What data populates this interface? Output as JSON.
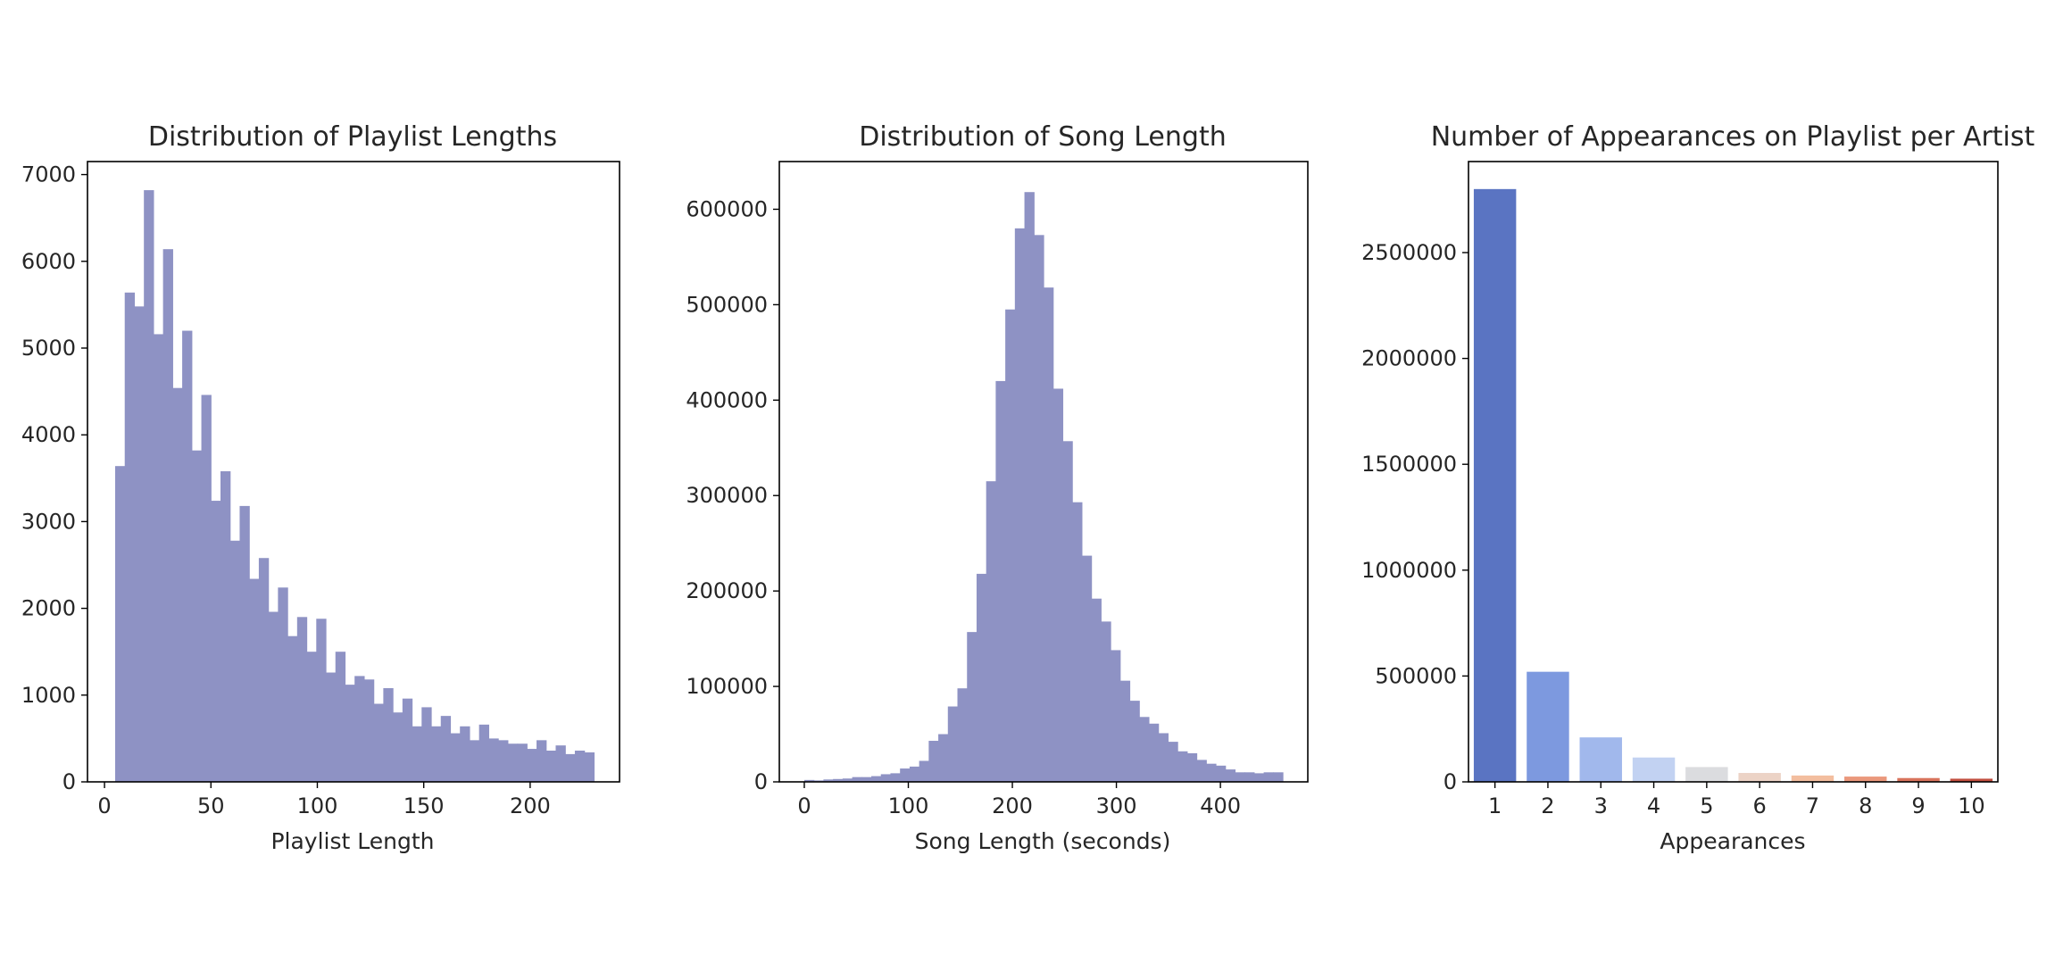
{
  "figure": {
    "background": "#ffffff"
  },
  "chart_data": [
    {
      "type": "bar",
      "subtype": "histogram",
      "title": "Distribution of Playlist Lengths",
      "xlabel": "Playlist Length",
      "ylabel": "",
      "xlim": [
        -8,
        242
      ],
      "ylim": [
        0,
        7150
      ],
      "xticks": [
        "0",
        "50",
        "100",
        "150",
        "200"
      ],
      "xtick_values": [
        0,
        50,
        100,
        150,
        200
      ],
      "yticks": [
        "0",
        "1000",
        "2000",
        "3000",
        "4000",
        "5000",
        "6000",
        "7000"
      ],
      "ytick_values": [
        0,
        1000,
        2000,
        3000,
        4000,
        5000,
        6000,
        7000
      ],
      "bin_start": 5,
      "bin_width": 4.5,
      "values": [
        3640,
        5640,
        5480,
        6820,
        5160,
        6140,
        4540,
        5200,
        3820,
        4460,
        3240,
        3580,
        2780,
        3180,
        2340,
        2580,
        1960,
        2240,
        1680,
        1900,
        1500,
        1880,
        1260,
        1500,
        1120,
        1220,
        1180,
        900,
        1080,
        800,
        960,
        640,
        860,
        640,
        760,
        560,
        640,
        480,
        660,
        500,
        480,
        440,
        440,
        380,
        480,
        360,
        420,
        320,
        360,
        340
      ],
      "color": "#8e92c4",
      "grid": false
    },
    {
      "type": "bar",
      "subtype": "histogram",
      "title": "Distribution of Song Length",
      "xlabel": "Song Length (seconds)",
      "ylabel": "",
      "xlim": [
        -24,
        484
      ],
      "ylim": [
        0,
        650000
      ],
      "xticks": [
        "0",
        "100",
        "200",
        "300",
        "400"
      ],
      "xtick_values": [
        0,
        100,
        200,
        300,
        400
      ],
      "yticks": [
        "0",
        "100000",
        "200000",
        "300000",
        "400000",
        "500000",
        "600000"
      ],
      "ytick_values": [
        0,
        100000,
        200000,
        300000,
        400000,
        500000,
        600000
      ],
      "bin_start": 0,
      "bin_width": 9.2,
      "values": [
        2000,
        1500,
        2500,
        3000,
        3500,
        5000,
        5000,
        6000,
        8000,
        9000,
        14000,
        16000,
        22000,
        43000,
        50000,
        79000,
        98000,
        157000,
        218000,
        315000,
        420000,
        495000,
        580000,
        618000,
        573000,
        518000,
        412000,
        357000,
        293000,
        237000,
        192000,
        168000,
        138000,
        106000,
        85000,
        68000,
        61000,
        51000,
        42000,
        32000,
        30000,
        23000,
        19000,
        17000,
        13000,
        10000,
        10000,
        9000,
        10000,
        10000
      ],
      "color": "#8e92c4",
      "grid": false
    },
    {
      "type": "bar",
      "title": "Number of Appearances on Playlist per Artist",
      "xlabel": "Appearances",
      "ylabel": "",
      "categories": [
        "1",
        "2",
        "3",
        "4",
        "5",
        "6",
        "7",
        "8",
        "9",
        "10"
      ],
      "values": [
        2800000,
        520000,
        210000,
        115000,
        70000,
        42000,
        30000,
        25000,
        18000,
        15000
      ],
      "colors": [
        "#5a74c2",
        "#7d99df",
        "#a1b8ec",
        "#c2d2f2",
        "#dbdcdf",
        "#ecd3c6",
        "#f3be9f",
        "#ea987c",
        "#d8735c",
        "#c24e3f"
      ],
      "ylim": [
        0,
        2930000
      ],
      "yticks": [
        "0",
        "500000",
        "1000000",
        "1500000",
        "2000000",
        "2500000"
      ],
      "ytick_values": [
        0,
        500000,
        1000000,
        1500000,
        2000000,
        2500000
      ],
      "grid": false
    }
  ]
}
